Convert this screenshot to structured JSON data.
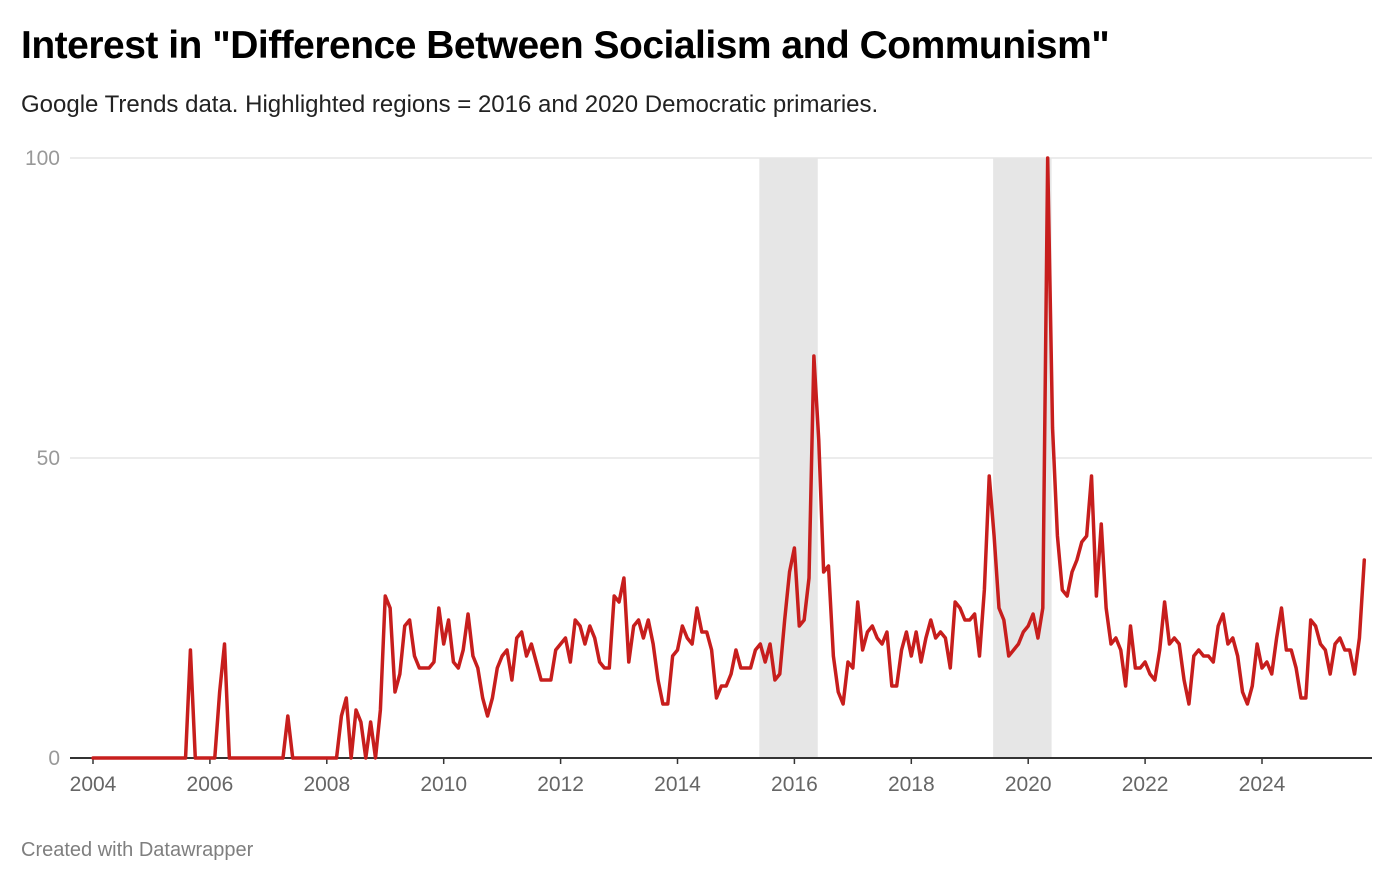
{
  "title": "Interest in \"Difference Between Socialism and Communism\"",
  "subtitle": "Google Trends data. Highlighted regions = 2016 and 2020 Democratic primaries.",
  "footer": "Created with Datawrapper",
  "colors": {
    "line": "#c71e1d",
    "highlight": "#e6e6e6",
    "grid": "#e5e5e5",
    "axis": "#333333"
  },
  "chart_data": {
    "type": "line",
    "title": "Interest in \"Difference Between Socialism and Communism\"",
    "subtitle": "Google Trends data. Highlighted regions = 2016 and 2020 Democratic primaries.",
    "xlabel": "",
    "ylabel": "",
    "xlim": [
      2004,
      2025.9
    ],
    "ylim": [
      0,
      100
    ],
    "x_ticks": [
      "2004",
      "2006",
      "2008",
      "2010",
      "2012",
      "2014",
      "2016",
      "2018",
      "2020",
      "2022",
      "2024"
    ],
    "y_ticks": [
      "0",
      "50",
      "100"
    ],
    "grid": "horizontal",
    "legend": "none",
    "highlight_ranges": [
      [
        2015.4,
        2016.4
      ],
      [
        2019.4,
        2020.4
      ]
    ],
    "series": [
      {
        "x_start": "2004-01",
        "frequency": "monthly",
        "values": [
          0,
          0,
          0,
          0,
          0,
          0,
          0,
          0,
          0,
          0,
          0,
          0,
          0,
          0,
          0,
          0,
          0,
          0,
          0,
          0,
          18,
          0,
          0,
          0,
          0,
          0,
          11,
          19,
          0,
          0,
          0,
          0,
          0,
          0,
          0,
          0,
          0,
          0,
          0,
          0,
          7,
          0,
          0,
          0,
          0,
          0,
          0,
          0,
          0,
          0,
          0,
          7,
          10,
          0,
          8,
          6,
          0,
          6,
          0,
          8,
          27,
          25,
          11,
          14,
          22,
          23,
          17,
          15,
          15,
          15,
          16,
          25,
          19,
          23,
          16,
          15,
          18,
          24,
          17,
          15,
          10,
          7,
          10,
          15,
          17,
          18,
          13,
          20,
          21,
          17,
          19,
          16,
          13,
          13,
          13,
          18,
          19,
          20,
          16,
          23,
          22,
          19,
          22,
          20,
          16,
          15,
          15,
          27,
          26,
          30,
          16,
          22,
          23,
          20,
          23,
          19,
          13,
          9,
          9,
          17,
          18,
          22,
          20,
          19,
          25,
          21,
          21,
          18,
          10,
          12,
          12,
          14,
          18,
          15,
          15,
          15,
          18,
          19,
          16,
          19,
          13,
          14,
          23,
          31,
          35,
          22,
          23,
          30,
          67,
          53,
          31,
          32,
          17,
          11,
          9,
          16,
          15,
          26,
          18,
          21,
          22,
          20,
          19,
          21,
          12,
          12,
          18,
          21,
          17,
          21,
          16,
          20,
          23,
          20,
          21,
          20,
          15,
          26,
          25,
          23,
          23,
          24,
          17,
          28,
          47,
          37,
          25,
          23,
          17,
          18,
          19,
          21,
          22,
          24,
          20,
          25,
          100,
          55,
          37,
          28,
          27,
          31,
          33,
          36,
          37,
          47,
          27,
          39,
          25,
          19,
          20,
          18,
          12,
          22,
          15,
          15,
          16,
          14,
          13,
          18,
          26,
          19,
          20,
          19,
          13,
          9,
          17,
          18,
          17,
          17,
          16,
          22,
          24,
          19,
          20,
          17,
          11,
          9,
          12,
          19,
          15,
          16,
          14,
          20,
          25,
          18,
          18,
          15,
          10,
          10,
          23,
          22,
          19,
          18,
          14,
          19,
          20,
          18,
          18,
          14,
          20,
          33
        ]
      }
    ]
  }
}
